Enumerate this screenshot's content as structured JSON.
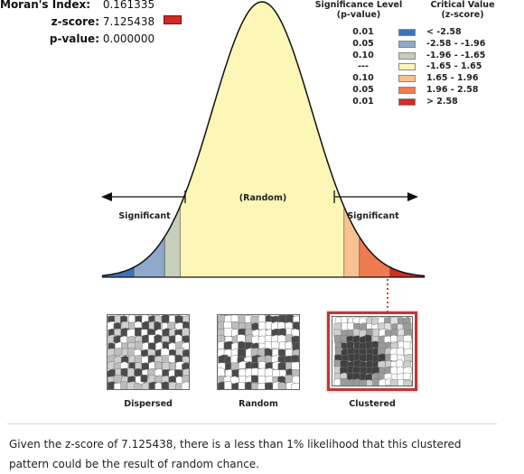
{
  "stats": {
    "moran_label": "Moran's Index:",
    "moran_value": "0.161335",
    "z_label": "z-score:",
    "z_value": "7.125438",
    "p_label": "p-value:",
    "p_value": "0.000000"
  },
  "legend": {
    "sig_header_1": "Significance Level",
    "sig_header_2": "(p-value)",
    "crit_header_1": "Critical Value",
    "crit_header_2": "(z-score)",
    "rows": [
      {
        "p": "0.01",
        "z": "< -2.58",
        "color": "#3d73b9"
      },
      {
        "p": "0.05",
        "z": "-2.58 - -1.96",
        "color": "#8ea9cc"
      },
      {
        "p": "0.10",
        "z": "-1.96 - -1.65",
        "color": "#c6cfb9"
      },
      {
        "p": "---",
        "z": "-1.65 - 1.65",
        "color": "#fcf7b6"
      },
      {
        "p": "0.10",
        "z": "1.65 - 1.96",
        "color": "#f8c190"
      },
      {
        "p": "0.05",
        "z": "1.96 - 2.58",
        "color": "#ef7a52"
      },
      {
        "p": "0.01",
        "z": "> 2.58",
        "color": "#d42b24"
      }
    ]
  },
  "curve": {
    "random_label": "(Random)",
    "left_label": "Significant",
    "right_label": "Significant"
  },
  "maps": [
    {
      "label": "Dispersed",
      "selected": false
    },
    {
      "label": "Random",
      "selected": false
    },
    {
      "label": "Clustered",
      "selected": true
    }
  ],
  "conclusion": "Given the z-score of 7.125438, there is a less than 1% likelihood that this clustered pattern could be the result of random chance."
}
